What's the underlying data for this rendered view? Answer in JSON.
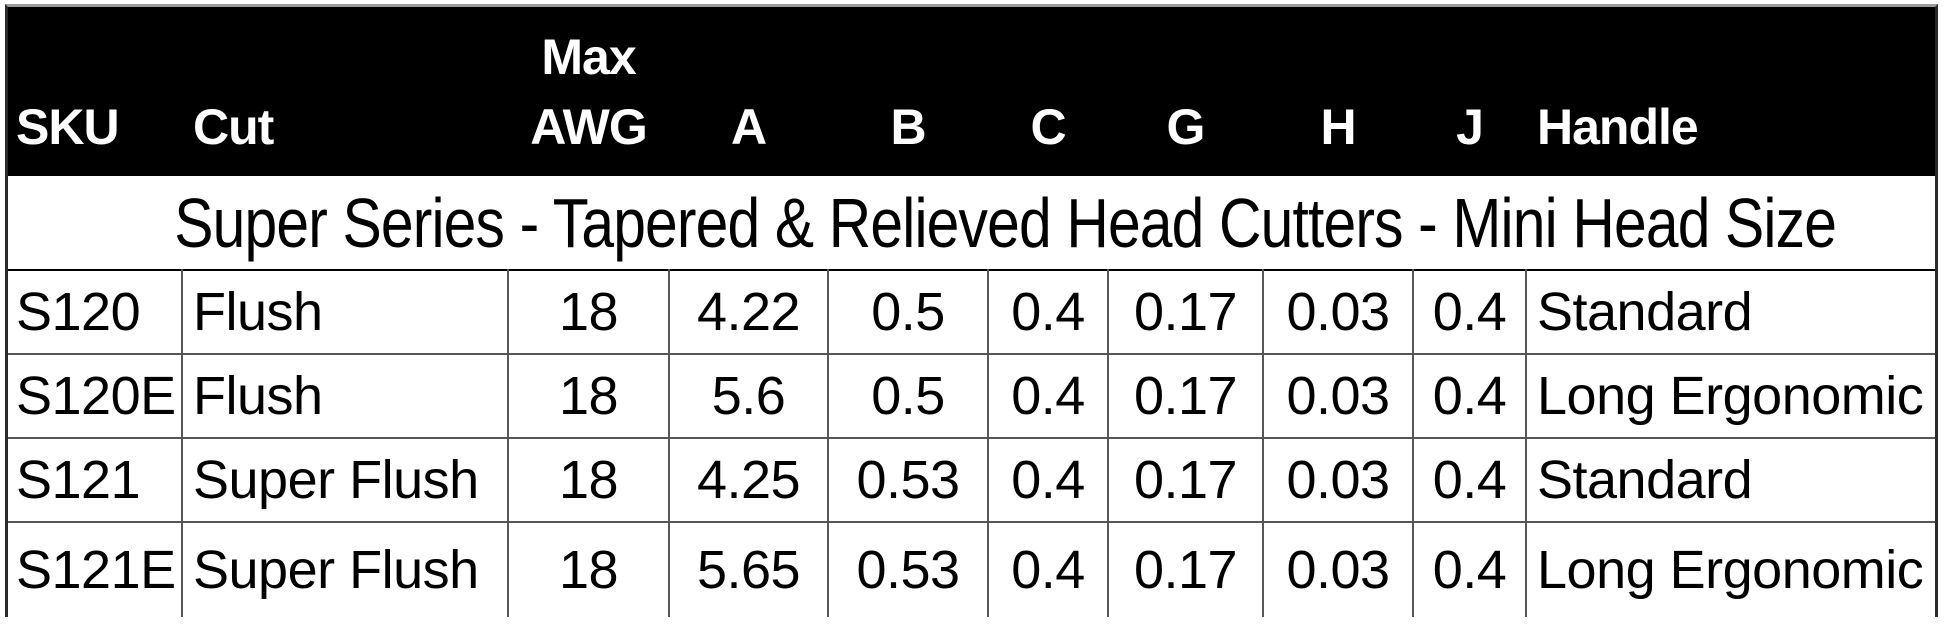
{
  "title": "Super Series - Tapered & Relieved Head Cutters - Mini Head Size",
  "colors": {
    "header_background": "#000000",
    "header_text": "#ffffff",
    "grid_line": "#565656",
    "body_text": "#000000",
    "page_background": "#ffffff"
  },
  "table": {
    "columns": [
      {
        "key": "sku",
        "label": "SKU",
        "align": "left"
      },
      {
        "key": "cut",
        "label": "Cut",
        "align": "left"
      },
      {
        "key": "max_awg",
        "label": "Max AWG",
        "align": "center"
      },
      {
        "key": "a",
        "label": "A",
        "align": "center"
      },
      {
        "key": "b",
        "label": "B",
        "align": "center"
      },
      {
        "key": "c",
        "label": "C",
        "align": "center"
      },
      {
        "key": "g",
        "label": "G",
        "align": "center"
      },
      {
        "key": "h",
        "label": "H",
        "align": "center"
      },
      {
        "key": "j",
        "label": "J",
        "align": "center"
      },
      {
        "key": "handle",
        "label": "Handle",
        "align": "left"
      }
    ],
    "rows": [
      {
        "sku": "S120",
        "cut": "Flush",
        "max_awg": "18",
        "a": "4.22",
        "b": "0.5",
        "c": "0.4",
        "g": "0.17",
        "h": "0.03",
        "j": "0.4",
        "handle": "Standard"
      },
      {
        "sku": "S120E",
        "cut": "Flush",
        "max_awg": "18",
        "a": "5.6",
        "b": "0.5",
        "c": "0.4",
        "g": "0.17",
        "h": "0.03",
        "j": "0.4",
        "handle": "Long Ergonomic"
      },
      {
        "sku": "S121",
        "cut": "Super Flush",
        "max_awg": "18",
        "a": "4.25",
        "b": "0.53",
        "c": "0.4",
        "g": "0.17",
        "h": "0.03",
        "j": "0.4",
        "handle": "Standard"
      },
      {
        "sku": "S121E",
        "cut": "Super Flush",
        "max_awg": "18",
        "a": "5.65",
        "b": "0.53",
        "c": "0.4",
        "g": "0.17",
        "h": "0.03",
        "j": "0.4",
        "handle": "Long Ergonomic"
      }
    ]
  }
}
